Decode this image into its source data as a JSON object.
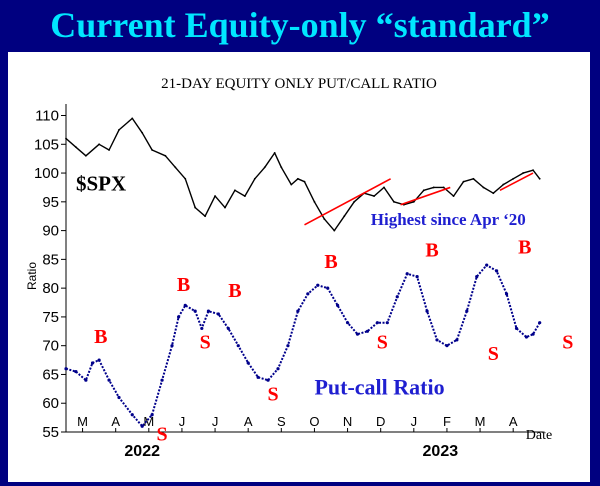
{
  "slide": {
    "title": "Current Equity-only “standard”"
  },
  "colors": {
    "background": "#000080",
    "title": "#00e6ff",
    "signal": "#ff0000",
    "ratio_line": "#00008b",
    "spx_line": "#000000",
    "callout": "#1f1fd0"
  },
  "chart_data": {
    "type": "line",
    "title": "21-DAY EQUITY ONLY PUT/CALL RATIO",
    "ylabel": "Ratio",
    "xlabel": "Date",
    "ylim": [
      55,
      112
    ],
    "yticks": [
      55,
      60,
      65,
      70,
      75,
      80,
      85,
      90,
      95,
      100,
      105,
      110
    ],
    "month_labels": [
      "M",
      "A",
      "M",
      "J",
      "J",
      "A",
      "S",
      "O",
      "N",
      "D",
      "J",
      "F",
      "M",
      "A"
    ],
    "month_positions": [
      0.5,
      1.5,
      2.5,
      3.5,
      4.5,
      5.5,
      6.5,
      7.5,
      8.5,
      9.5,
      10.5,
      11.5,
      12.5,
      13.5
    ],
    "year_labels": [
      {
        "label": "2022",
        "month": 2.3
      },
      {
        "label": "2023",
        "month": 11.3
      }
    ],
    "series": [
      {
        "name": "$SPX",
        "x": [
          0,
          0.3,
          0.6,
          1.0,
          1.3,
          1.6,
          2.0,
          2.3,
          2.6,
          3.0,
          3.3,
          3.6,
          3.9,
          4.2,
          4.5,
          4.8,
          5.1,
          5.4,
          5.7,
          6.0,
          6.3,
          6.5,
          6.8,
          7.0,
          7.2,
          7.5,
          7.8,
          8.1,
          8.4,
          8.7,
          9.0,
          9.3,
          9.6,
          9.9,
          10.2,
          10.5,
          10.8,
          11.1,
          11.4,
          11.7,
          12.0,
          12.3,
          12.6,
          12.9,
          13.2,
          13.5,
          13.8,
          14.1,
          14.3
        ],
        "values": [
          106,
          104.5,
          103,
          105,
          104,
          107.5,
          109.5,
          107,
          104,
          103,
          101,
          99,
          94,
          92.5,
          96,
          94,
          97,
          96,
          99,
          101,
          103.5,
          101,
          98,
          99,
          98.5,
          95,
          92,
          90,
          92.5,
          95,
          96.5,
          96,
          97.5,
          95,
          94.5,
          95,
          97,
          97.5,
          97.5,
          96,
          98.5,
          99,
          97.5,
          96.5,
          98,
          99,
          100,
          100.5,
          99
        ]
      },
      {
        "name": "Put-call Ratio",
        "x": [
          0,
          0.3,
          0.6,
          0.8,
          1.0,
          1.3,
          1.6,
          2.0,
          2.3,
          2.6,
          2.9,
          3.2,
          3.4,
          3.6,
          3.9,
          4.1,
          4.3,
          4.6,
          4.9,
          5.2,
          5.5,
          5.8,
          6.1,
          6.4,
          6.7,
          7.0,
          7.3,
          7.6,
          7.9,
          8.2,
          8.5,
          8.8,
          9.1,
          9.4,
          9.7,
          10.0,
          10.3,
          10.6,
          10.9,
          11.2,
          11.5,
          11.8,
          12.1,
          12.4,
          12.7,
          13.0,
          13.3,
          13.6,
          13.9,
          14.1,
          14.3
        ],
        "values": [
          66,
          65.5,
          64,
          67,
          67.5,
          64,
          61,
          58,
          56,
          58,
          64,
          70,
          75,
          77,
          76,
          73,
          76,
          75.5,
          73,
          70,
          67,
          64.5,
          64,
          66,
          70,
          76,
          79,
          80.5,
          80,
          77,
          74,
          72,
          72.5,
          74,
          74,
          78.5,
          82.5,
          82,
          76,
          71,
          70,
          71,
          76,
          82,
          84,
          83,
          79,
          73,
          71.5,
          72,
          74
        ]
      }
    ],
    "signals": [
      {
        "label": "B",
        "month": 1.05,
        "value": 70.5
      },
      {
        "label": "S",
        "month": 2.9,
        "value": 53.5
      },
      {
        "label": "B",
        "month": 3.55,
        "value": 79.5
      },
      {
        "label": "S",
        "month": 4.2,
        "value": 69.5
      },
      {
        "label": "B",
        "month": 5.1,
        "value": 78.5
      },
      {
        "label": "S",
        "month": 6.25,
        "value": 60.5
      },
      {
        "label": "B",
        "month": 8.0,
        "value": 83.5
      },
      {
        "label": "S",
        "month": 9.55,
        "value": 69.5
      },
      {
        "label": "B",
        "month": 11.05,
        "value": 85.5
      },
      {
        "label": "S",
        "month": 12.9,
        "value": 67.5
      },
      {
        "label": "B",
        "month": 13.85,
        "value": 86
      },
      {
        "label": "S",
        "month": 15.15,
        "value": 69.5
      }
    ],
    "annotations": [
      {
        "text": "$SPX",
        "month": 0.3,
        "value": 97
      },
      {
        "text": "Highest since Apr ‘20",
        "month": 9.2,
        "value": 91
      },
      {
        "text": "Put-call Ratio",
        "month": 7.5,
        "value": 61.5
      }
    ],
    "trendlines": [
      {
        "x": [
          7.2,
          9.8
        ],
        "values": [
          91,
          99
        ]
      },
      {
        "x": [
          10.1,
          11.6
        ],
        "values": [
          94.5,
          97.5
        ]
      },
      {
        "x": [
          13.1,
          14.1
        ],
        "values": [
          97,
          100
        ]
      }
    ]
  }
}
